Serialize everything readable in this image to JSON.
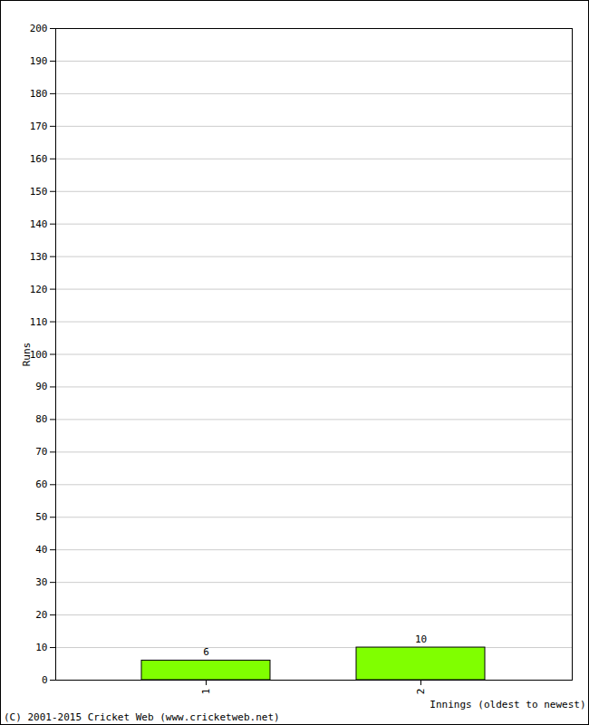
{
  "chart_data": {
    "type": "bar",
    "categories": [
      "1",
      "2"
    ],
    "values": [
      6,
      10
    ],
    "color": "#80ff00",
    "ylim": [
      0,
      200
    ],
    "yticks": [
      0,
      10,
      20,
      30,
      40,
      50,
      60,
      70,
      80,
      90,
      100,
      110,
      120,
      130,
      140,
      150,
      160,
      170,
      180,
      190,
      200
    ],
    "grid": true,
    "data_labels": true,
    "xlabel": "Innings (oldest to newest)",
    "ylabel": "Runs",
    "caption": "(C) 2001-2015 Cricket Web (www.cricketweb.net)"
  }
}
